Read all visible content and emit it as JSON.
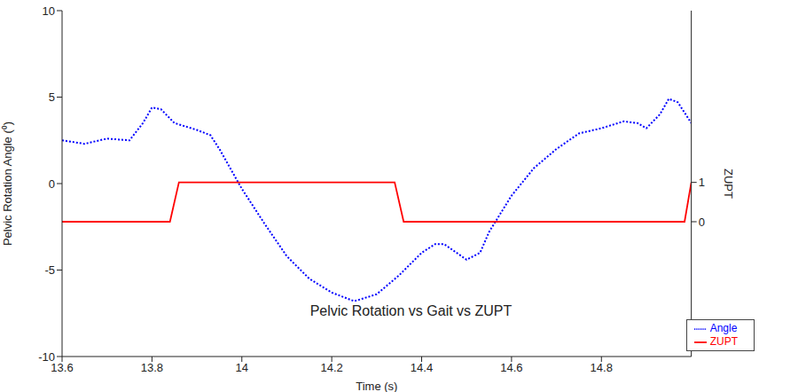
{
  "chart_data": {
    "type": "line",
    "title": "Pelvic Rotation vs Gait vs ZUPT",
    "x_label": "Time (s)",
    "y_label": "Pelvic Rotation Angle (⁰)",
    "y2_label": "ZUPT",
    "xlim": [
      13.6,
      15.0
    ],
    "xticks": [
      13.6,
      13.8,
      14,
      14.2,
      14.4,
      14.6,
      14.8
    ],
    "ylim": [
      -10,
      10
    ],
    "yticks": [
      -10,
      -5,
      0,
      5,
      10
    ],
    "y2lim": [
      -3.43,
      5.37
    ],
    "y2ticks": [
      0,
      1
    ],
    "legend": "lower right",
    "grid": false,
    "series": [
      {
        "name": "Angle",
        "color": "#0000ff",
        "line_style": "dotted",
        "x": [
          13.6,
          13.65,
          13.7,
          13.75,
          13.78,
          13.8,
          13.82,
          13.85,
          13.9,
          13.93,
          13.95,
          14.0,
          14.05,
          14.1,
          14.15,
          14.2,
          14.25,
          14.3,
          14.35,
          14.4,
          14.43,
          14.45,
          14.5,
          14.53,
          14.55,
          14.6,
          14.65,
          14.7,
          14.75,
          14.8,
          14.85,
          14.88,
          14.9,
          14.93,
          14.95,
          14.97,
          15.0
        ],
        "values": [
          2.5,
          2.3,
          2.6,
          2.5,
          3.5,
          4.4,
          4.3,
          3.5,
          3.1,
          2.8,
          2.0,
          -0.3,
          -2.3,
          -4.2,
          -5.5,
          -6.3,
          -6.8,
          -6.4,
          -5.3,
          -4.0,
          -3.5,
          -3.5,
          -4.4,
          -4.0,
          -2.8,
          -0.7,
          0.9,
          2.0,
          2.9,
          3.2,
          3.6,
          3.5,
          3.2,
          4.0,
          4.9,
          4.7,
          3.5
        ]
      },
      {
        "name": "ZUPT",
        "color": "#ff0000",
        "line_style": "solid",
        "axis": "y2",
        "x": [
          13.6,
          13.84,
          13.86,
          14.34,
          14.36,
          14.985,
          15.0
        ],
        "values": [
          0,
          0,
          1,
          1,
          0,
          0,
          1
        ]
      }
    ]
  }
}
